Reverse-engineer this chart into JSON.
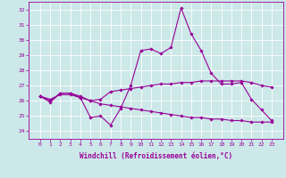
{
  "xlabel": "Windchill (Refroidissement éolien,°C)",
  "hours": [
    0,
    1,
    2,
    3,
    4,
    5,
    6,
    7,
    8,
    9,
    10,
    11,
    12,
    13,
    14,
    15,
    16,
    17,
    18,
    19,
    20,
    21,
    22,
    23
  ],
  "line1": [
    26.3,
    25.9,
    26.5,
    26.5,
    26.2,
    24.9,
    25.0,
    24.4,
    25.5,
    27.0,
    29.3,
    29.4,
    29.1,
    29.5,
    32.1,
    30.4,
    29.3,
    27.8,
    27.1,
    27.1,
    27.2,
    26.1,
    25.4,
    24.7
  ],
  "line2": [
    26.3,
    26.0,
    26.5,
    26.5,
    26.3,
    26.0,
    26.1,
    26.6,
    26.7,
    26.8,
    26.9,
    27.0,
    27.1,
    27.1,
    27.2,
    27.2,
    27.3,
    27.3,
    27.3,
    27.3,
    27.3,
    27.2,
    27.0,
    26.9
  ],
  "line3": [
    26.3,
    26.1,
    26.4,
    26.4,
    26.2,
    26.0,
    25.8,
    25.7,
    25.6,
    25.5,
    25.4,
    25.3,
    25.2,
    25.1,
    25.0,
    24.9,
    24.9,
    24.8,
    24.8,
    24.7,
    24.7,
    24.6,
    24.6,
    24.6
  ],
  "line_color": "#990099",
  "bg_color": "#cce8e8",
  "grid_color": "#ffffff",
  "ylim": [
    23.5,
    32.5
  ],
  "yticks": [
    24,
    25,
    26,
    27,
    28,
    29,
    30,
    31,
    32
  ],
  "marker": "D",
  "markersize": 1.8,
  "linewidth": 0.8,
  "tick_fontsize": 4.5,
  "xlabel_fontsize": 5.5
}
